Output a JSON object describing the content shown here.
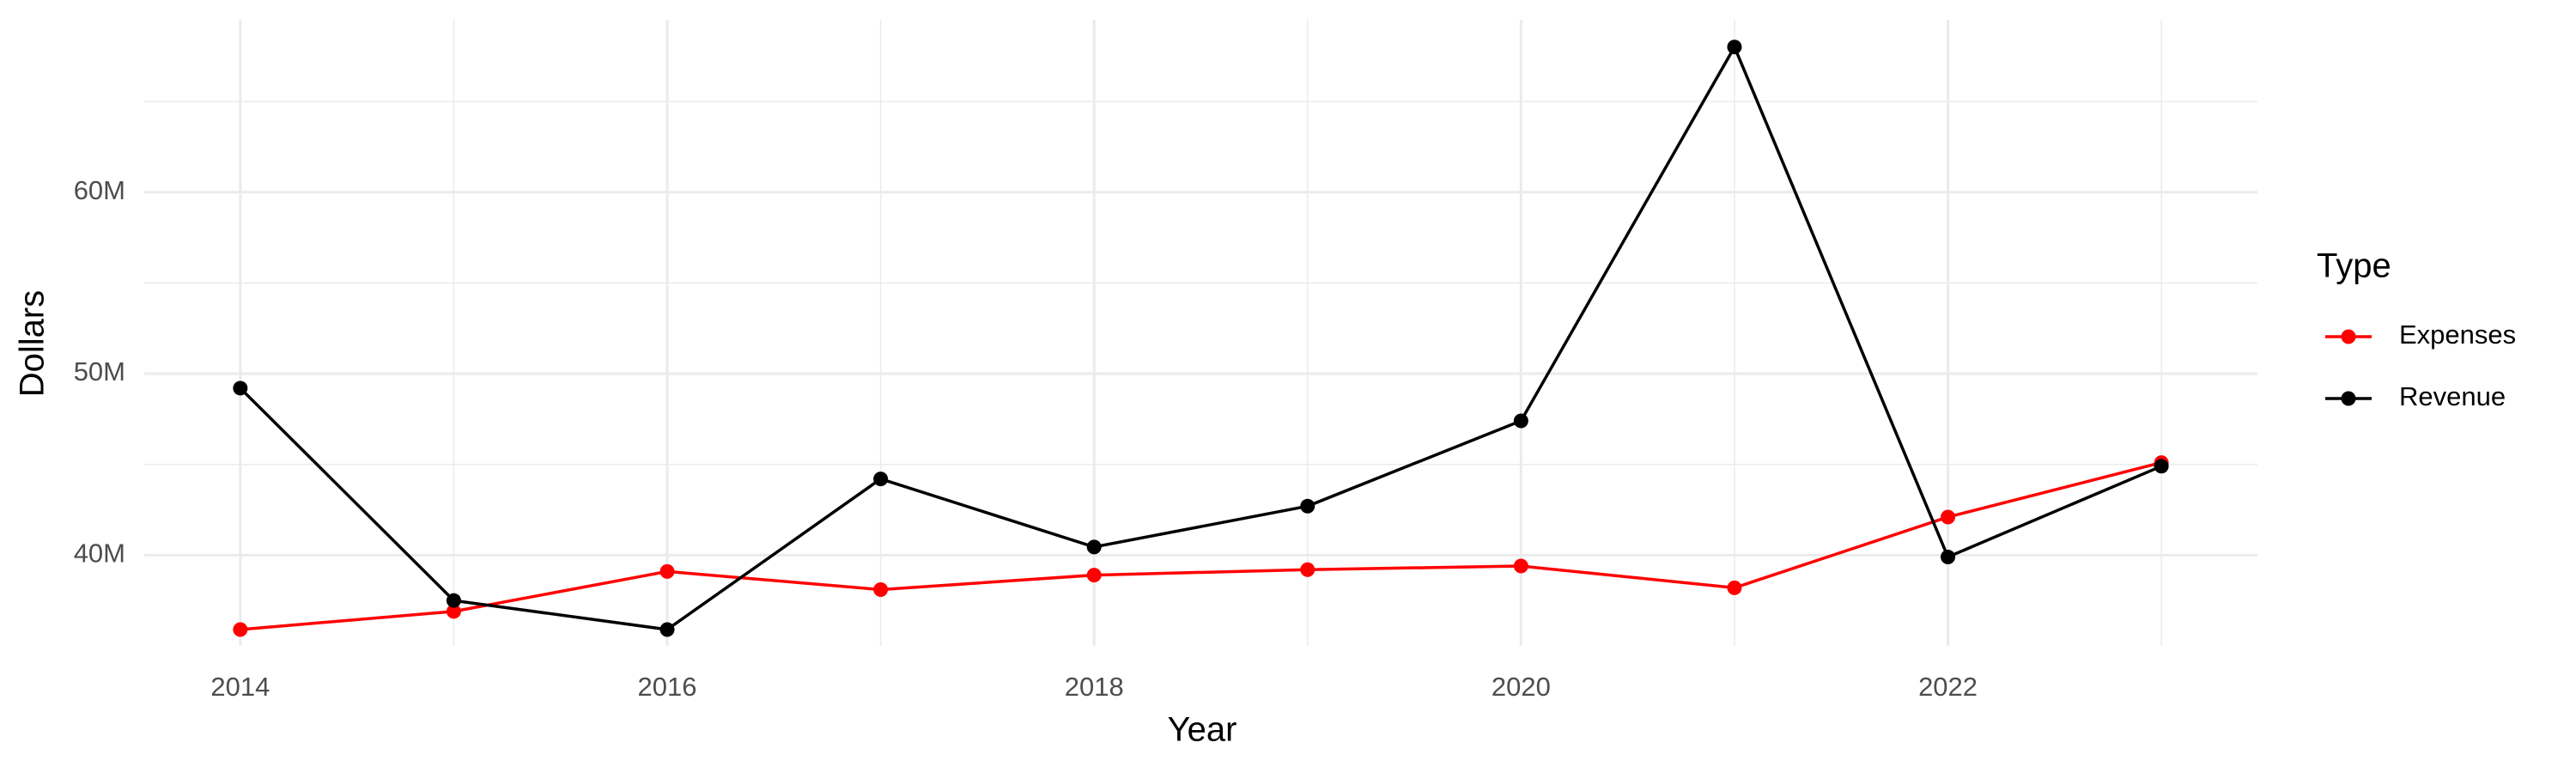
{
  "chart_data": {
    "type": "line",
    "x_label": "Year",
    "y_label": "Dollars",
    "legend_title": "Type",
    "x": [
      2014,
      2015,
      2016,
      2017,
      2018,
      2019,
      2020,
      2021,
      2022,
      2023
    ],
    "series": [
      {
        "name": "Expenses",
        "color": "#ff0000",
        "values": [
          35900000,
          36900000,
          39100000,
          38100000,
          38900000,
          39200000,
          39400000,
          38200000,
          42100000,
          45100000
        ]
      },
      {
        "name": "Revenue",
        "color": "#000000",
        "values": [
          49200000,
          37500000,
          35900000,
          44200000,
          40450000,
          42700000,
          47400000,
          68000000,
          39900000,
          44900000
        ]
      }
    ],
    "xlim": [
      2013.55,
      2023.45
    ],
    "xticks": [
      2014,
      2016,
      2018,
      2020,
      2022
    ],
    "ylim": [
      35000000,
      69500000
    ],
    "yticks": [
      {
        "value": 40000000,
        "label": "40M"
      },
      {
        "value": 50000000,
        "label": "50M"
      },
      {
        "value": 60000000,
        "label": "60M"
      }
    ],
    "grid": true,
    "minor_grid": true,
    "legend_position": "right"
  }
}
